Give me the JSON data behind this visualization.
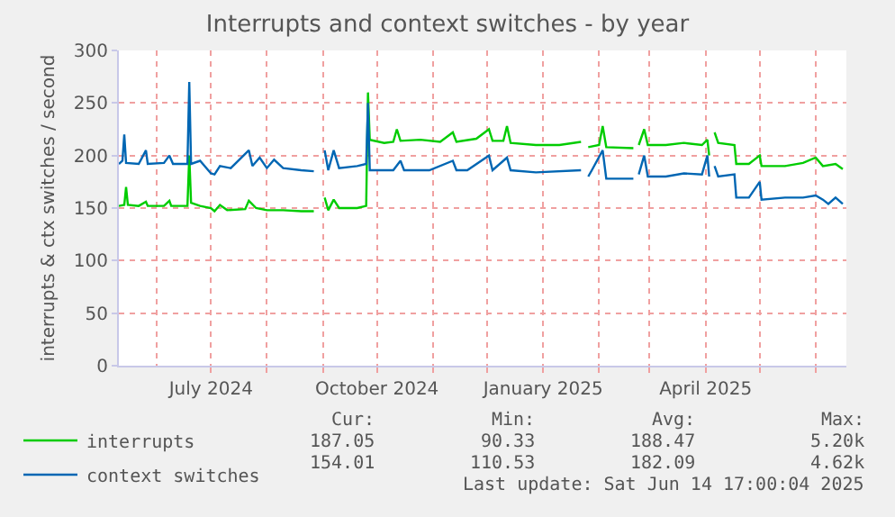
{
  "chart_data": {
    "type": "line",
    "title": "Interrupts and context switches - by year",
    "ylabel": "interrupts & ctx switches / second",
    "xlim": [
      "2024-05-11",
      "2025-06-18"
    ],
    "ylim": [
      0,
      300
    ],
    "yticks": [
      0,
      50,
      100,
      150,
      200,
      250,
      300
    ],
    "xticks": [
      {
        "value": "2024-06-01",
        "label": null
      },
      {
        "value": "2024-07-01",
        "label": "July 2024"
      },
      {
        "value": "2024-08-01",
        "label": null
      },
      {
        "value": "2024-09-01",
        "label": null
      },
      {
        "value": "2024-10-01",
        "label": "October 2024"
      },
      {
        "value": "2024-11-01",
        "label": null
      },
      {
        "value": "2024-12-01",
        "label": null
      },
      {
        "value": "2025-01-01",
        "label": "January 2025"
      },
      {
        "value": "2025-02-01",
        "label": null
      },
      {
        "value": "2025-03-01",
        "label": null
      },
      {
        "value": "2025-04-01",
        "label": "April 2025"
      },
      {
        "value": "2025-05-01",
        "label": null
      },
      {
        "value": "2025-06-01",
        "label": null
      }
    ],
    "grid": true,
    "legend": "bottom left",
    "marker": "none",
    "line_style": "solid",
    "series": [
      {
        "name": "interrupts",
        "color": "#00cc00",
        "x": [
          "2024-05-11",
          "2024-05-14",
          "2024-05-15",
          "2024-05-16",
          "2024-05-22",
          "2024-05-26",
          "2024-05-27",
          "2024-06-05",
          "2024-06-08",
          "2024-06-09",
          "2024-06-18",
          "2024-06-19",
          "2024-06-20",
          "2024-06-25",
          "2024-07-01",
          "2024-07-03",
          "2024-07-06",
          "2024-07-10",
          "2024-07-20",
          "2024-07-22",
          "2024-07-26",
          "2024-08-01",
          "2024-08-10",
          "2024-08-20",
          "2024-08-27",
          "2024-08-30",
          "2024-09-02",
          "2024-09-04",
          "2024-09-07",
          "2024-09-10",
          "2024-09-20",
          "2024-09-25",
          "2024-09-26",
          "2024-09-27",
          "2024-10-05",
          "2024-10-10",
          "2024-10-12",
          "2024-10-14",
          "2024-10-25",
          "2024-11-05",
          "2024-11-12",
          "2024-11-14",
          "2024-11-25",
          "2024-12-02",
          "2024-12-04",
          "2024-12-10",
          "2024-12-12",
          "2024-12-14",
          "2024-12-28",
          "2025-01-10",
          "2025-01-22",
          "2025-01-24",
          "2025-01-26",
          "2025-02-01",
          "2025-02-03",
          "2025-02-05",
          "2025-02-20",
          "2025-02-22",
          "2025-02-23",
          "2025-02-26",
          "2025-02-28",
          "2025-03-10",
          "2025-03-20",
          "2025-03-30",
          "2025-04-02",
          "2025-04-03",
          "2025-04-05",
          "2025-04-06",
          "2025-04-08",
          "2025-04-17",
          "2025-04-18",
          "2025-04-25",
          "2025-05-01",
          "2025-05-02",
          "2025-05-15",
          "2025-05-25",
          "2025-06-01",
          "2025-06-05",
          "2025-06-12",
          "2025-06-16"
        ],
        "values": [
          152,
          153,
          170,
          153,
          152,
          156,
          152,
          152,
          157,
          152,
          152,
          200,
          155,
          152,
          150,
          147,
          153,
          148,
          149,
          157,
          150,
          148,
          148,
          147,
          147,
          null,
          160,
          148,
          158,
          150,
          150,
          152,
          260,
          215,
          212,
          213,
          225,
          214,
          215,
          213,
          222,
          213,
          216,
          225,
          214,
          214,
          228,
          212,
          210,
          210,
          213,
          null,
          208,
          210,
          228,
          208,
          207,
          null,
          210,
          225,
          210,
          210,
          212,
          210,
          215,
          200,
          null,
          222,
          212,
          210,
          192,
          192,
          200,
          190,
          190,
          193,
          198,
          190,
          192,
          187
        ]
      },
      {
        "name": "context switches",
        "color": "#0066b3",
        "x": [
          "2024-05-11",
          "2024-05-13",
          "2024-05-14",
          "2024-05-15",
          "2024-05-22",
          "2024-05-26",
          "2024-05-27",
          "2024-06-05",
          "2024-06-08",
          "2024-06-10",
          "2024-06-18",
          "2024-06-19",
          "2024-06-20",
          "2024-06-25",
          "2024-07-01",
          "2024-07-03",
          "2024-07-06",
          "2024-07-12",
          "2024-07-22",
          "2024-07-24",
          "2024-07-28",
          "2024-08-01",
          "2024-08-05",
          "2024-08-10",
          "2024-08-20",
          "2024-08-27",
          "2024-08-30",
          "2024-09-02",
          "2024-09-04",
          "2024-09-07",
          "2024-09-10",
          "2024-09-20",
          "2024-09-25",
          "2024-09-26",
          "2024-09-27",
          "2024-10-10",
          "2024-10-14",
          "2024-10-16",
          "2024-10-30",
          "2024-11-12",
          "2024-11-14",
          "2024-11-20",
          "2024-12-02",
          "2024-12-04",
          "2024-12-12",
          "2024-12-14",
          "2024-12-28",
          "2025-01-22",
          "2025-01-24",
          "2025-01-26",
          "2025-01-28",
          "2025-02-03",
          "2025-02-05",
          "2025-02-20",
          "2025-02-22",
          "2025-02-23",
          "2025-02-26",
          "2025-02-28",
          "2025-03-10",
          "2025-03-20",
          "2025-03-30",
          "2025-04-02",
          "2025-04-03",
          "2025-04-05",
          "2025-04-06",
          "2025-04-08",
          "2025-04-17",
          "2025-04-18",
          "2025-04-25",
          "2025-05-01",
          "2025-05-02",
          "2025-05-15",
          "2025-05-25",
          "2025-06-01",
          "2025-06-05",
          "2025-06-08",
          "2025-06-12",
          "2025-06-16"
        ],
        "values": [
          192,
          195,
          220,
          193,
          192,
          205,
          192,
          193,
          200,
          192,
          192,
          270,
          192,
          195,
          183,
          182,
          190,
          188,
          205,
          190,
          198,
          188,
          196,
          188,
          186,
          185,
          null,
          205,
          186,
          205,
          188,
          190,
          192,
          250,
          186,
          186,
          195,
          186,
          186,
          195,
          186,
          186,
          200,
          186,
          198,
          186,
          184,
          186,
          null,
          180,
          186,
          205,
          178,
          178,
          null,
          182,
          200,
          180,
          180,
          183,
          182,
          200,
          180,
          null,
          190,
          180,
          182,
          160,
          160,
          175,
          158,
          160,
          160,
          162,
          158,
          154,
          160,
          154
        ]
      }
    ],
    "annotations": [
      "Cur:",
      "Min:",
      "Avg:",
      "Max:",
      "187.05",
      "90.33",
      "188.47",
      "5.20k",
      "154.01",
      "110.53",
      "182.09",
      "4.62k",
      "Last update: Sat Jun 14 17:00:04 2025"
    ]
  }
}
